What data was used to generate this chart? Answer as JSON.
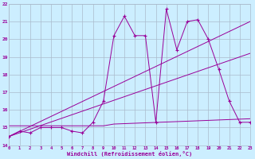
{
  "bg_color": "#cceeff",
  "grid_color": "#aabbcc",
  "line_color": "#990099",
  "xmin": 0,
  "xmax": 23,
  "ymin": 14,
  "ymax": 22,
  "xlabel": "Windchill (Refroidissement éolien,°C)",
  "series1_x": [
    0,
    1,
    2,
    3,
    4,
    5,
    6,
    7,
    8,
    9,
    10,
    11,
    12,
    13,
    14,
    15,
    16,
    17,
    18,
    19,
    20,
    21,
    22,
    23
  ],
  "series1_y": [
    14.5,
    14.8,
    14.7,
    15.0,
    15.0,
    15.0,
    14.8,
    14.7,
    15.3,
    16.5,
    20.2,
    21.3,
    20.2,
    20.2,
    15.3,
    21.7,
    19.4,
    21.0,
    21.1,
    20.0,
    18.3,
    16.5,
    15.3,
    15.3
  ],
  "series2_x": [
    0,
    23
  ],
  "series2_y": [
    14.5,
    21.0
  ],
  "series3_x": [
    0,
    23
  ],
  "series3_y": [
    14.5,
    19.2
  ],
  "series4_x": [
    0,
    9,
    10,
    23
  ],
  "series4_y": [
    15.1,
    15.1,
    15.2,
    15.5
  ],
  "yticks": [
    14,
    15,
    16,
    17,
    18,
    19,
    20,
    21,
    22
  ],
  "xticks": [
    0,
    1,
    2,
    3,
    4,
    5,
    6,
    7,
    8,
    9,
    10,
    11,
    12,
    13,
    14,
    15,
    16,
    17,
    18,
    19,
    20,
    21,
    22,
    23
  ]
}
